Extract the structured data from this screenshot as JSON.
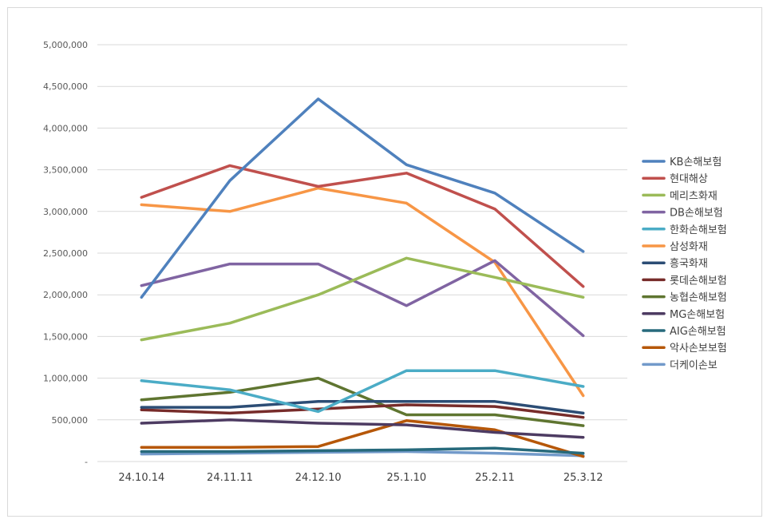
{
  "chart_data": {
    "type": "line",
    "categories": [
      "24.10.14",
      "24.11.11",
      "24.12.10",
      "25.1.10",
      "25.2.11",
      "25.3.12"
    ],
    "ylim": [
      0,
      5000000
    ],
    "yticks": [
      0,
      500000,
      1000000,
      1500000,
      2000000,
      2500000,
      3000000,
      3500000,
      4000000,
      4500000,
      5000000
    ],
    "ytick_labels": [
      "-",
      "500,000",
      "1,000,000",
      "1,500,000",
      "2,000,000",
      "2,500,000",
      "3,000,000",
      "3,500,000",
      "4,000,000",
      "4,500,000",
      "5,000,000"
    ],
    "grid": true,
    "legend_position": "right",
    "series": [
      {
        "name": "KB손해보험",
        "color": "#4F81BD",
        "values": [
          1970000,
          3370000,
          4350000,
          3560000,
          3220000,
          2520000
        ]
      },
      {
        "name": "현대해상",
        "color": "#C0504D",
        "values": [
          3170000,
          3550000,
          3300000,
          3460000,
          3030000,
          2100000
        ]
      },
      {
        "name": "메리츠화재",
        "color": "#9BBB59",
        "values": [
          1460000,
          1660000,
          2000000,
          2440000,
          2210000,
          1970000
        ]
      },
      {
        "name": "DB손해보험",
        "color": "#8064A2",
        "values": [
          2110000,
          2370000,
          2370000,
          1870000,
          2410000,
          1510000
        ]
      },
      {
        "name": "한화손해보험",
        "color": "#4BACC6",
        "values": [
          970000,
          860000,
          600000,
          1090000,
          1090000,
          900000
        ]
      },
      {
        "name": "삼성화재",
        "color": "#F79646",
        "values": [
          3080000,
          3000000,
          3280000,
          3100000,
          2390000,
          790000
        ]
      },
      {
        "name": "흥국화재",
        "color": "#2C4D75",
        "values": [
          650000,
          650000,
          720000,
          720000,
          720000,
          580000
        ]
      },
      {
        "name": "롯데손해보험",
        "color": "#772C2A",
        "values": [
          620000,
          580000,
          630000,
          680000,
          660000,
          530000
        ]
      },
      {
        "name": "농협손해보험",
        "color": "#5F7530",
        "values": [
          740000,
          830000,
          1000000,
          560000,
          560000,
          430000
        ]
      },
      {
        "name": "MG손해보험",
        "color": "#4D3B62",
        "values": [
          460000,
          500000,
          460000,
          440000,
          350000,
          290000
        ]
      },
      {
        "name": "AIG손해보험",
        "color": "#276A7C",
        "values": [
          120000,
          120000,
          130000,
          140000,
          160000,
          100000
        ]
      },
      {
        "name": "악사손보보험",
        "color": "#B65708",
        "values": [
          170000,
          170000,
          180000,
          490000,
          380000,
          60000
        ]
      },
      {
        "name": "더케이손보",
        "color": "#729ACA",
        "values": [
          90000,
          100000,
          110000,
          120000,
          100000,
          70000
        ]
      }
    ]
  }
}
